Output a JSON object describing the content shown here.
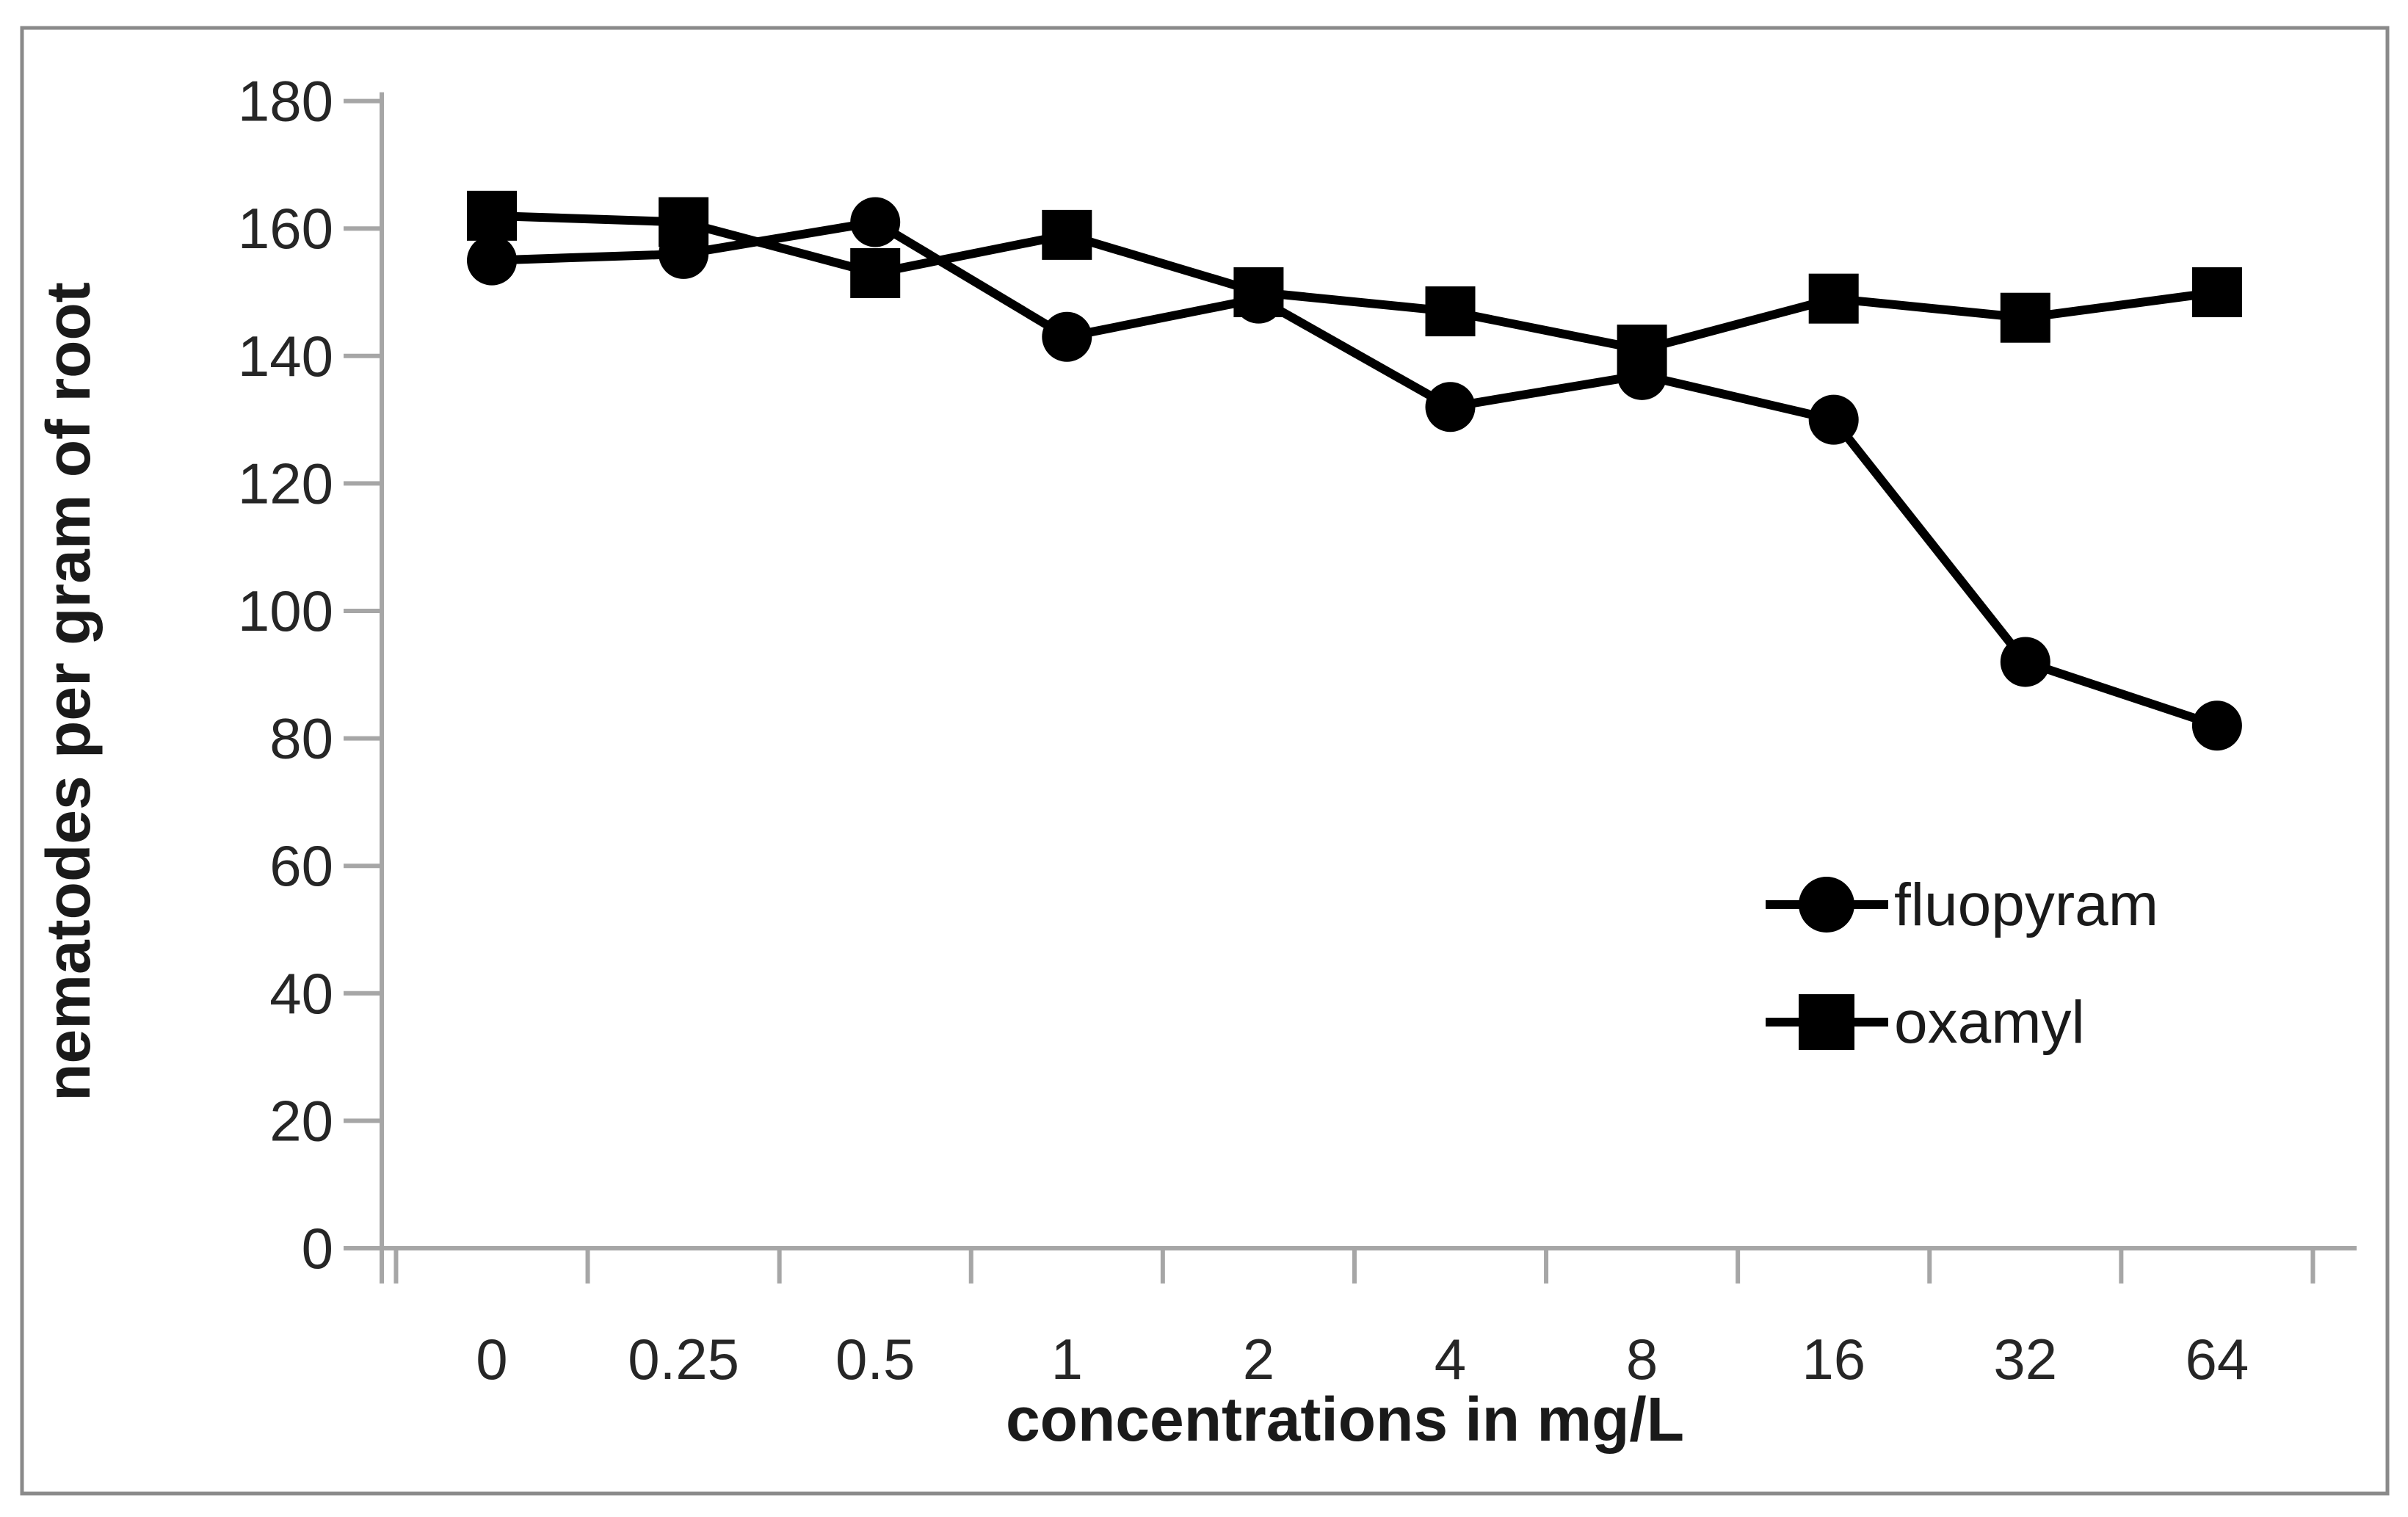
{
  "chart_data": {
    "type": "line",
    "title": "",
    "xlabel": "concentrations in mg/L",
    "ylabel": "nematodes per gram of root",
    "categories": [
      "0",
      "0.25",
      "0.5",
      "1",
      "2",
      "4",
      "8",
      "16",
      "32",
      "64"
    ],
    "series": [
      {
        "name": "fluopyram",
        "marker": "circle",
        "values": [
          155,
          156,
          161,
          143,
          149,
          132,
          137,
          130,
          92,
          82
        ]
      },
      {
        "name": "oxamyl",
        "marker": "square",
        "values": [
          162,
          161,
          153,
          159,
          150,
          147,
          141,
          149,
          146,
          150
        ]
      }
    ],
    "ylim": [
      0,
      180
    ],
    "ytick_step": 20,
    "yticks": [
      0,
      20,
      40,
      60,
      80,
      100,
      120,
      140,
      160,
      180
    ],
    "grid": false,
    "legend_position": "right-middle",
    "colors": {
      "series_line": "#000000",
      "axis_line": "#a6a6a6",
      "tick_text": "#262626",
      "title_text": "#1a1a1a",
      "frame_border": "#8a8a8a",
      "background": "#ffffff"
    }
  }
}
